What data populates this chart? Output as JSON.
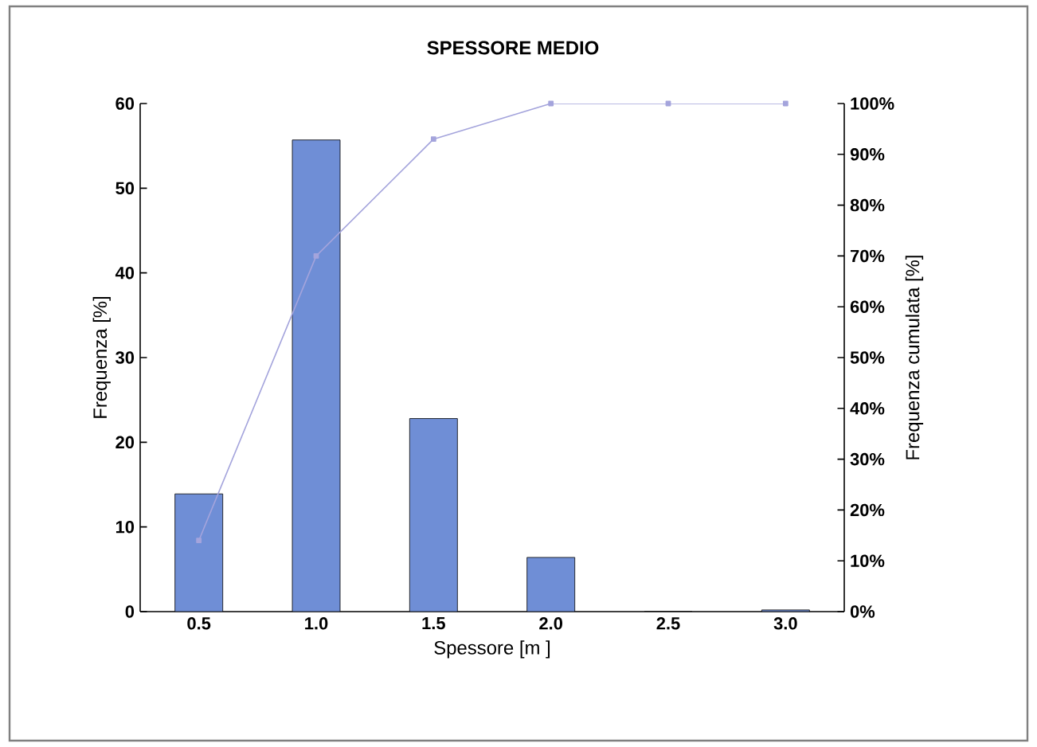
{
  "chart_data": {
    "type": "bar",
    "title": "SPESSORE MEDIO",
    "xlabel": "Spessore [m ]",
    "ylabel": "Frequenza [%]",
    "y2label": "Frequenza cumulata  [%]",
    "categories": [
      "0.5",
      "1.0",
      "1.5",
      "2.0",
      "2.5",
      "3.0"
    ],
    "series": [
      {
        "color": "#6f8ed6",
        "values": [
          13.9,
          55.7,
          22.8,
          6.4,
          0,
          0.2
        ]
      },
      {
        "type": "line",
        "axis": "y2",
        "color": "#a4a4dc",
        "values": [
          14,
          70,
          93,
          100,
          100,
          100
        ]
      }
    ],
    "marker": "square",
    "ylim": [
      0,
      60
    ],
    "yticks": [
      0,
      10,
      20,
      30,
      40,
      50,
      60
    ],
    "y2lim": [
      0,
      100
    ],
    "y2ticks": [
      {
        "value": 0,
        "label": "0%"
      },
      {
        "value": 10,
        "label": "10%"
      },
      {
        "value": 20,
        "label": "20%"
      },
      {
        "value": 30,
        "label": "30%"
      },
      {
        "value": 40,
        "label": "40%"
      },
      {
        "value": 50,
        "label": "50%"
      },
      {
        "value": 60,
        "label": "60%"
      },
      {
        "value": 70,
        "label": "70%"
      },
      {
        "value": 80,
        "label": "80%"
      },
      {
        "value": 90,
        "label": "90%"
      },
      {
        "value": 100,
        "label": "100%"
      }
    ]
  }
}
